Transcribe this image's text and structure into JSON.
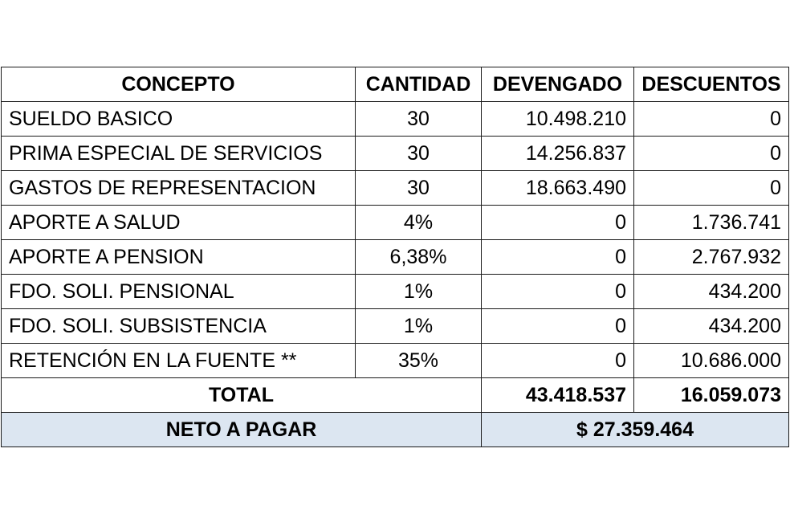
{
  "headers": {
    "concepto": "CONCEPTO",
    "cantidad": "CANTIDAD",
    "devengado": "DEVENGADO",
    "descuentos": "DESCUENTOS"
  },
  "rows": [
    {
      "concepto": "SUELDO BASICO",
      "cantidad": "30",
      "devengado": "10.498.210",
      "descuentos": "0"
    },
    {
      "concepto": "PRIMA ESPECIAL DE SERVICIOS",
      "cantidad": "30",
      "devengado": "14.256.837",
      "descuentos": "0"
    },
    {
      "concepto": "GASTOS DE REPRESENTACION",
      "cantidad": "30",
      "devengado": "18.663.490",
      "descuentos": "0"
    },
    {
      "concepto": "APORTE A SALUD",
      "cantidad": "4%",
      "devengado": "0",
      "descuentos": "1.736.741"
    },
    {
      "concepto": "APORTE A PENSION",
      "cantidad": "6,38%",
      "devengado": "0",
      "descuentos": "2.767.932"
    },
    {
      "concepto": "FDO. SOLI. PENSIONAL",
      "cantidad": "1%",
      "devengado": "0",
      "descuentos": "434.200"
    },
    {
      "concepto": "FDO. SOLI. SUBSISTENCIA",
      "cantidad": "1%",
      "devengado": "0",
      "descuentos": "434.200"
    },
    {
      "concepto": "RETENCIÓN EN LA FUENTE **",
      "cantidad": "35%",
      "devengado": "0",
      "descuentos": "10.686.000"
    }
  ],
  "total": {
    "label": "TOTAL",
    "devengado": "43.418.537",
    "descuentos": "16.059.073"
  },
  "neto": {
    "label": "NETO A PAGAR",
    "value": "$ 27.359.464"
  },
  "colors": {
    "neto_background": "#dce6f1",
    "border": "#1a1a1a"
  }
}
